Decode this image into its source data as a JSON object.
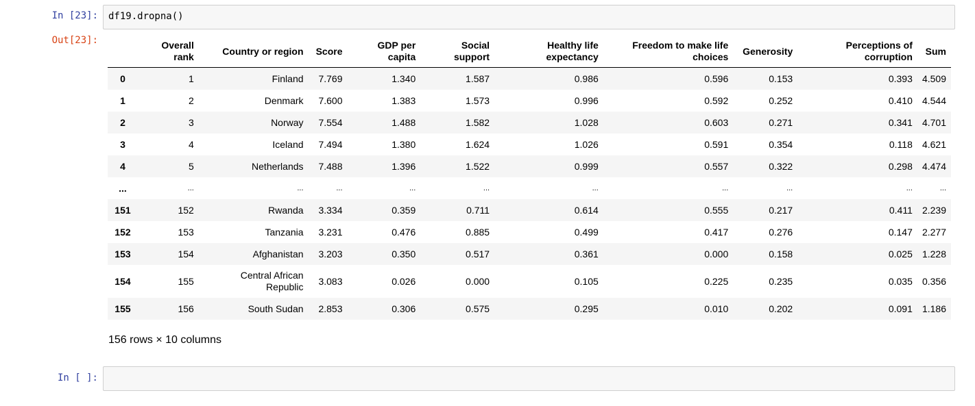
{
  "cell1": {
    "in_prompt": "In [23]:",
    "code": "df19.dropna()",
    "out_prompt": "Out[23]:"
  },
  "table": {
    "columns": [
      "",
      "Overall rank",
      "Country or region",
      "Score",
      "GDP per capita",
      "Social support",
      "Healthy life expectancy",
      "Freedom to make life choices",
      "Generosity",
      "Perceptions of corruption",
      "Sum"
    ],
    "header_lines": [
      [
        "",
        ""
      ],
      [
        "Overall",
        "rank"
      ],
      [
        "Country or region",
        ""
      ],
      [
        "Score",
        ""
      ],
      [
        "GDP per",
        "capita"
      ],
      [
        "Social",
        "support"
      ],
      [
        "Healthy life",
        "expectancy"
      ],
      [
        "Freedom to make life",
        "choices"
      ],
      [
        "Generosity",
        ""
      ],
      [
        "Perceptions of",
        "corruption"
      ],
      [
        "Sum",
        ""
      ]
    ],
    "rows": [
      {
        "index": "0",
        "cells": [
          "1",
          "Finland",
          "7.769",
          "1.340",
          "1.587",
          "0.986",
          "0.596",
          "0.153",
          "0.393",
          "4.509"
        ]
      },
      {
        "index": "1",
        "cells": [
          "2",
          "Denmark",
          "7.600",
          "1.383",
          "1.573",
          "0.996",
          "0.592",
          "0.252",
          "0.410",
          "4.544"
        ]
      },
      {
        "index": "2",
        "cells": [
          "3",
          "Norway",
          "7.554",
          "1.488",
          "1.582",
          "1.028",
          "0.603",
          "0.271",
          "0.341",
          "4.701"
        ]
      },
      {
        "index": "3",
        "cells": [
          "4",
          "Iceland",
          "7.494",
          "1.380",
          "1.624",
          "1.026",
          "0.591",
          "0.354",
          "0.118",
          "4.621"
        ]
      },
      {
        "index": "4",
        "cells": [
          "5",
          "Netherlands",
          "7.488",
          "1.396",
          "1.522",
          "0.999",
          "0.557",
          "0.322",
          "0.298",
          "4.474"
        ]
      },
      {
        "index": "...",
        "cells": [
          "...",
          "...",
          "...",
          "...",
          "...",
          "...",
          "...",
          "...",
          "...",
          "..."
        ]
      },
      {
        "index": "151",
        "cells": [
          "152",
          "Rwanda",
          "3.334",
          "0.359",
          "0.711",
          "0.614",
          "0.555",
          "0.217",
          "0.411",
          "2.239"
        ]
      },
      {
        "index": "152",
        "cells": [
          "153",
          "Tanzania",
          "3.231",
          "0.476",
          "0.885",
          "0.499",
          "0.417",
          "0.276",
          "0.147",
          "2.277"
        ]
      },
      {
        "index": "153",
        "cells": [
          "154",
          "Afghanistan",
          "3.203",
          "0.350",
          "0.517",
          "0.361",
          "0.000",
          "0.158",
          "0.025",
          "1.228"
        ]
      },
      {
        "index": "154",
        "cells": [
          "155",
          "Central African Republic",
          "3.083",
          "0.026",
          "0.000",
          "0.105",
          "0.225",
          "0.235",
          "0.035",
          "0.356"
        ],
        "country_lines": [
          "Central African",
          "Republic"
        ]
      },
      {
        "index": "155",
        "cells": [
          "156",
          "South Sudan",
          "2.853",
          "0.306",
          "0.575",
          "0.295",
          "0.010",
          "0.202",
          "0.091",
          "1.186"
        ]
      }
    ],
    "shape_text": "156 rows × 10 columns"
  },
  "cell2": {
    "in_prompt": "In [ ]:",
    "code": ""
  },
  "colors": {
    "in_prompt": "#303f9f",
    "out_prompt": "#d84315",
    "cell_bg": "#f7f7f7",
    "row_stripe": "#f5f5f5"
  }
}
